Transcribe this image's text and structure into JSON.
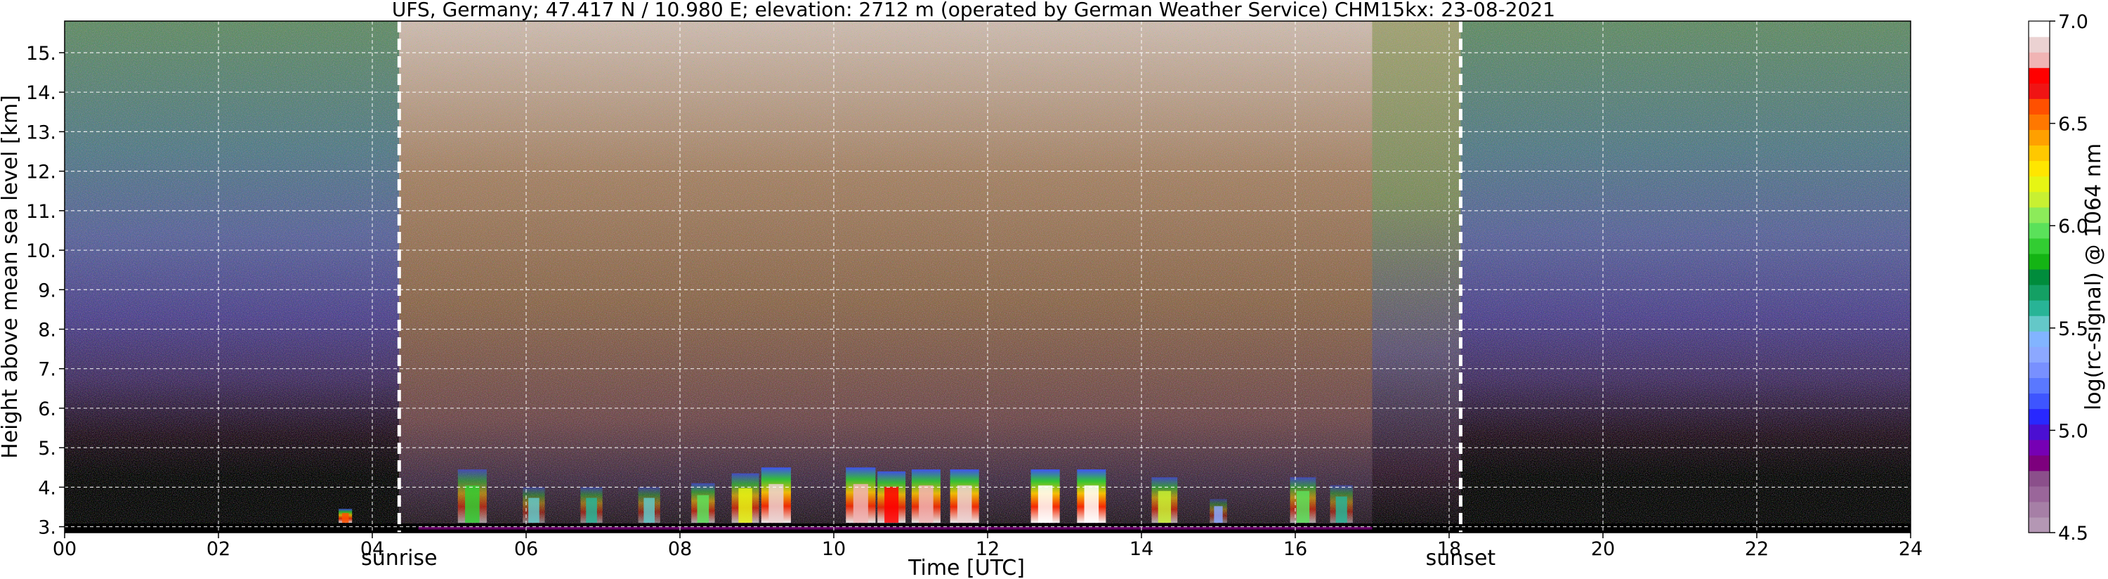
{
  "chart_data": {
    "type": "heatmap",
    "title": "UFS, Germany; 47.417 N / 10.980 E; elevation: 2712 m  (operated by German Weather Service)    CHM15kx: 23-08-2021",
    "xlabel": "Time [UTC]",
    "ylabel": "Height above mean sea level [km]",
    "colorbar_label": "log(rc-signal) @ 1064 nm",
    "xlim": [
      0,
      24
    ],
    "ylim": [
      2.85,
      15.8
    ],
    "x_ticks": [
      "00",
      "02",
      "04",
      "06",
      "08",
      "10",
      "12",
      "14",
      "16",
      "18",
      "20",
      "22",
      "24"
    ],
    "y_ticks": [
      "3.",
      "4.",
      "5.",
      "6.",
      "7.",
      "8.",
      "9.",
      "10.",
      "11.",
      "12.",
      "13.",
      "14.",
      "15."
    ],
    "grid": true,
    "colorbar": {
      "range": [
        4.5,
        7.0
      ],
      "ticks": [
        "7.0",
        "6.5",
        "6.0",
        "5.5",
        "5.0",
        "4.5"
      ],
      "colors": [
        "#b497b4",
        "#a67fa6",
        "#9a669a",
        "#8b4f8b",
        "#7d007d",
        "#7600b4",
        "#4b0fd2",
        "#2828ff",
        "#3e55ff",
        "#5a78ff",
        "#7890ff",
        "#8ca8ff",
        "#82b4ff",
        "#64c8c8",
        "#28b496",
        "#14a064",
        "#008c3c",
        "#14b414",
        "#32cd32",
        "#5ae15a",
        "#8ceb5a",
        "#c8f032",
        "#e6f514",
        "#ffe600",
        "#ffc800",
        "#ffa000",
        "#ff7800",
        "#ff5000",
        "#f01414",
        "#ff0000",
        "#f0b4b4",
        "#ebd2d2",
        "#ffffff"
      ]
    },
    "markers": [
      {
        "label": "sunrise",
        "time": 4.35
      },
      {
        "label": "sunset",
        "time": 18.15
      }
    ],
    "signal_background": [
      {
        "start": 0.0,
        "end": 4.35,
        "regime": "night"
      },
      {
        "start": 4.35,
        "end": 17.0,
        "regime": "day"
      },
      {
        "start": 17.0,
        "end": 18.15,
        "regime": "dusk"
      },
      {
        "start": 18.15,
        "end": 24.0,
        "regime": "night"
      }
    ],
    "boundary_layer_features": [
      {
        "time": 3.65,
        "top": 3.45,
        "level": 6.6
      },
      {
        "time": 5.3,
        "top": 4.45,
        "level": 5.9
      },
      {
        "time": 6.1,
        "top": 4.0,
        "level": 5.5
      },
      {
        "time": 6.85,
        "top": 4.0,
        "level": 5.6
      },
      {
        "time": 7.6,
        "top": 4.0,
        "level": 5.5
      },
      {
        "time": 8.3,
        "top": 4.1,
        "level": 6.0
      },
      {
        "time": 8.85,
        "top": 4.35,
        "level": 6.2
      },
      {
        "time": 9.25,
        "top": 4.5,
        "level": 6.9
      },
      {
        "time": 10.35,
        "top": 4.5,
        "level": 6.8
      },
      {
        "time": 10.75,
        "top": 4.4,
        "level": 6.7
      },
      {
        "time": 11.2,
        "top": 4.45,
        "level": 6.8
      },
      {
        "time": 11.7,
        "top": 4.45,
        "level": 6.9
      },
      {
        "time": 12.75,
        "top": 4.45,
        "level": 7.0
      },
      {
        "time": 13.35,
        "top": 4.45,
        "level": 7.0
      },
      {
        "time": 14.3,
        "top": 4.25,
        "level": 6.1
      },
      {
        "time": 15.0,
        "top": 3.7,
        "level": 5.4
      },
      {
        "time": 16.1,
        "top": 4.25,
        "level": 6.0
      },
      {
        "time": 16.6,
        "top": 4.05,
        "level": 5.6
      }
    ]
  }
}
